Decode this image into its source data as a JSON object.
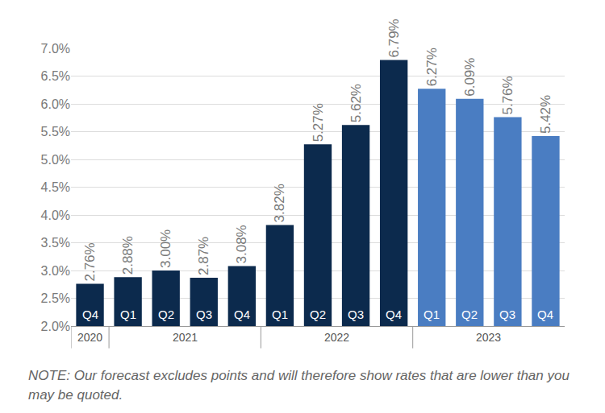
{
  "chart_data": {
    "type": "bar",
    "categories": [
      "Q4",
      "Q1",
      "Q2",
      "Q3",
      "Q4",
      "Q1",
      "Q2",
      "Q3",
      "Q4",
      "Q1",
      "Q2",
      "Q3",
      "Q4"
    ],
    "years": [
      "2020",
      "2021",
      "2021",
      "2021",
      "2021",
      "2022",
      "2022",
      "2022",
      "2022",
      "2023",
      "2023",
      "2023",
      "2023"
    ],
    "values": [
      2.76,
      2.88,
      3.0,
      2.87,
      3.08,
      3.82,
      5.27,
      5.62,
      6.79,
      6.27,
      6.09,
      5.76,
      5.42
    ],
    "value_labels": [
      "2.76%",
      "2.88%",
      "3.00%",
      "2.87%",
      "3.08%",
      "3.82%",
      "5.27%",
      "5.62%",
      "6.79%",
      "6.27%",
      "6.09%",
      "5.76%",
      "5.42%"
    ],
    "colors": [
      "#0c2a4d",
      "#0c2a4d",
      "#0c2a4d",
      "#0c2a4d",
      "#0c2a4d",
      "#0c2a4d",
      "#0c2a4d",
      "#0c2a4d",
      "#0c2a4d",
      "#4a7dc2",
      "#4a7dc2",
      "#4a7dc2",
      "#4a7dc2"
    ],
    "ylim": [
      2.0,
      7.0
    ],
    "yticks": [
      {
        "value": 2.0,
        "label": "2.0%"
      },
      {
        "value": 2.5,
        "label": "2.5%"
      },
      {
        "value": 3.0,
        "label": "3.0%"
      },
      {
        "value": 3.5,
        "label": "3.5%"
      },
      {
        "value": 4.0,
        "label": "4.0%"
      },
      {
        "value": 4.5,
        "label": "4.5%"
      },
      {
        "value": 5.0,
        "label": "5.0%"
      },
      {
        "value": 5.5,
        "label": "5.5%"
      },
      {
        "value": 6.0,
        "label": "6.0%"
      },
      {
        "value": 6.5,
        "label": "6.5%"
      },
      {
        "value": 7.0,
        "label": "7.0%"
      }
    ],
    "grid": true,
    "data_labels": true,
    "note": "NOTE: Our forecast excludes points and will therefore show rates that are lower than you may be quoted."
  }
}
